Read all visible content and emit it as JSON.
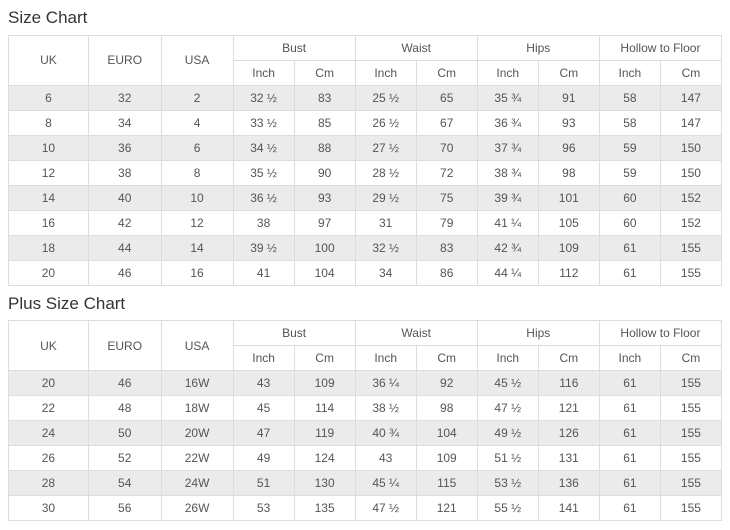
{
  "tables": [
    {
      "title": "Size Chart",
      "columns": [
        {
          "label": "UK"
        },
        {
          "label": "EURO"
        },
        {
          "label": "USA"
        },
        {
          "label": "Bust",
          "children": [
            "Inch",
            "Cm"
          ]
        },
        {
          "label": "Waist",
          "children": [
            "Inch",
            "Cm"
          ]
        },
        {
          "label": "Hips",
          "children": [
            "Inch",
            "Cm"
          ]
        },
        {
          "label": "Hollow to Floor",
          "children": [
            "Inch",
            "Cm"
          ]
        }
      ],
      "rows": [
        [
          "6",
          "32",
          "2",
          "32 ½",
          "83",
          "25 ½",
          "65",
          "35 ¾",
          "91",
          "58",
          "147"
        ],
        [
          "8",
          "34",
          "4",
          "33 ½",
          "85",
          "26 ½",
          "67",
          "36 ¾",
          "93",
          "58",
          "147"
        ],
        [
          "10",
          "36",
          "6",
          "34 ½",
          "88",
          "27 ½",
          "70",
          "37 ¾",
          "96",
          "59",
          "150"
        ],
        [
          "12",
          "38",
          "8",
          "35 ½",
          "90",
          "28 ½",
          "72",
          "38 ¾",
          "98",
          "59",
          "150"
        ],
        [
          "14",
          "40",
          "10",
          "36 ½",
          "93",
          "29 ½",
          "75",
          "39 ¾",
          "101",
          "60",
          "152"
        ],
        [
          "16",
          "42",
          "12",
          "38",
          "97",
          "31",
          "79",
          "41 ¼",
          "105",
          "60",
          "152"
        ],
        [
          "18",
          "44",
          "14",
          "39 ½",
          "100",
          "32 ½",
          "83",
          "42 ¾",
          "109",
          "61",
          "155"
        ],
        [
          "20",
          "46",
          "16",
          "41",
          "104",
          "34",
          "86",
          "44 ¼",
          "112",
          "61",
          "155"
        ]
      ]
    },
    {
      "title": "Plus Size Chart",
      "columns": [
        {
          "label": "UK"
        },
        {
          "label": "EURO"
        },
        {
          "label": "USA"
        },
        {
          "label": "Bust",
          "children": [
            "Inch",
            "Cm"
          ]
        },
        {
          "label": "Waist",
          "children": [
            "Inch",
            "Cm"
          ]
        },
        {
          "label": "Hips",
          "children": [
            "Inch",
            "Cm"
          ]
        },
        {
          "label": "Hollow to Floor",
          "children": [
            "Inch",
            "Cm"
          ]
        }
      ],
      "rows": [
        [
          "20",
          "46",
          "16W",
          "43",
          "109",
          "36 ¼",
          "92",
          "45 ½",
          "116",
          "61",
          "155"
        ],
        [
          "22",
          "48",
          "18W",
          "45",
          "114",
          "38 ½",
          "98",
          "47 ½",
          "121",
          "61",
          "155"
        ],
        [
          "24",
          "50",
          "20W",
          "47",
          "119",
          "40 ¾",
          "104",
          "49 ½",
          "126",
          "61",
          "155"
        ],
        [
          "26",
          "52",
          "22W",
          "49",
          "124",
          "43",
          "109",
          "51 ½",
          "131",
          "61",
          "155"
        ],
        [
          "28",
          "54",
          "24W",
          "51",
          "130",
          "45 ¼",
          "115",
          "53 ½",
          "136",
          "61",
          "155"
        ],
        [
          "30",
          "56",
          "26W",
          "53",
          "135",
          "47 ½",
          "121",
          "55 ½",
          "141",
          "61",
          "155"
        ]
      ]
    }
  ]
}
